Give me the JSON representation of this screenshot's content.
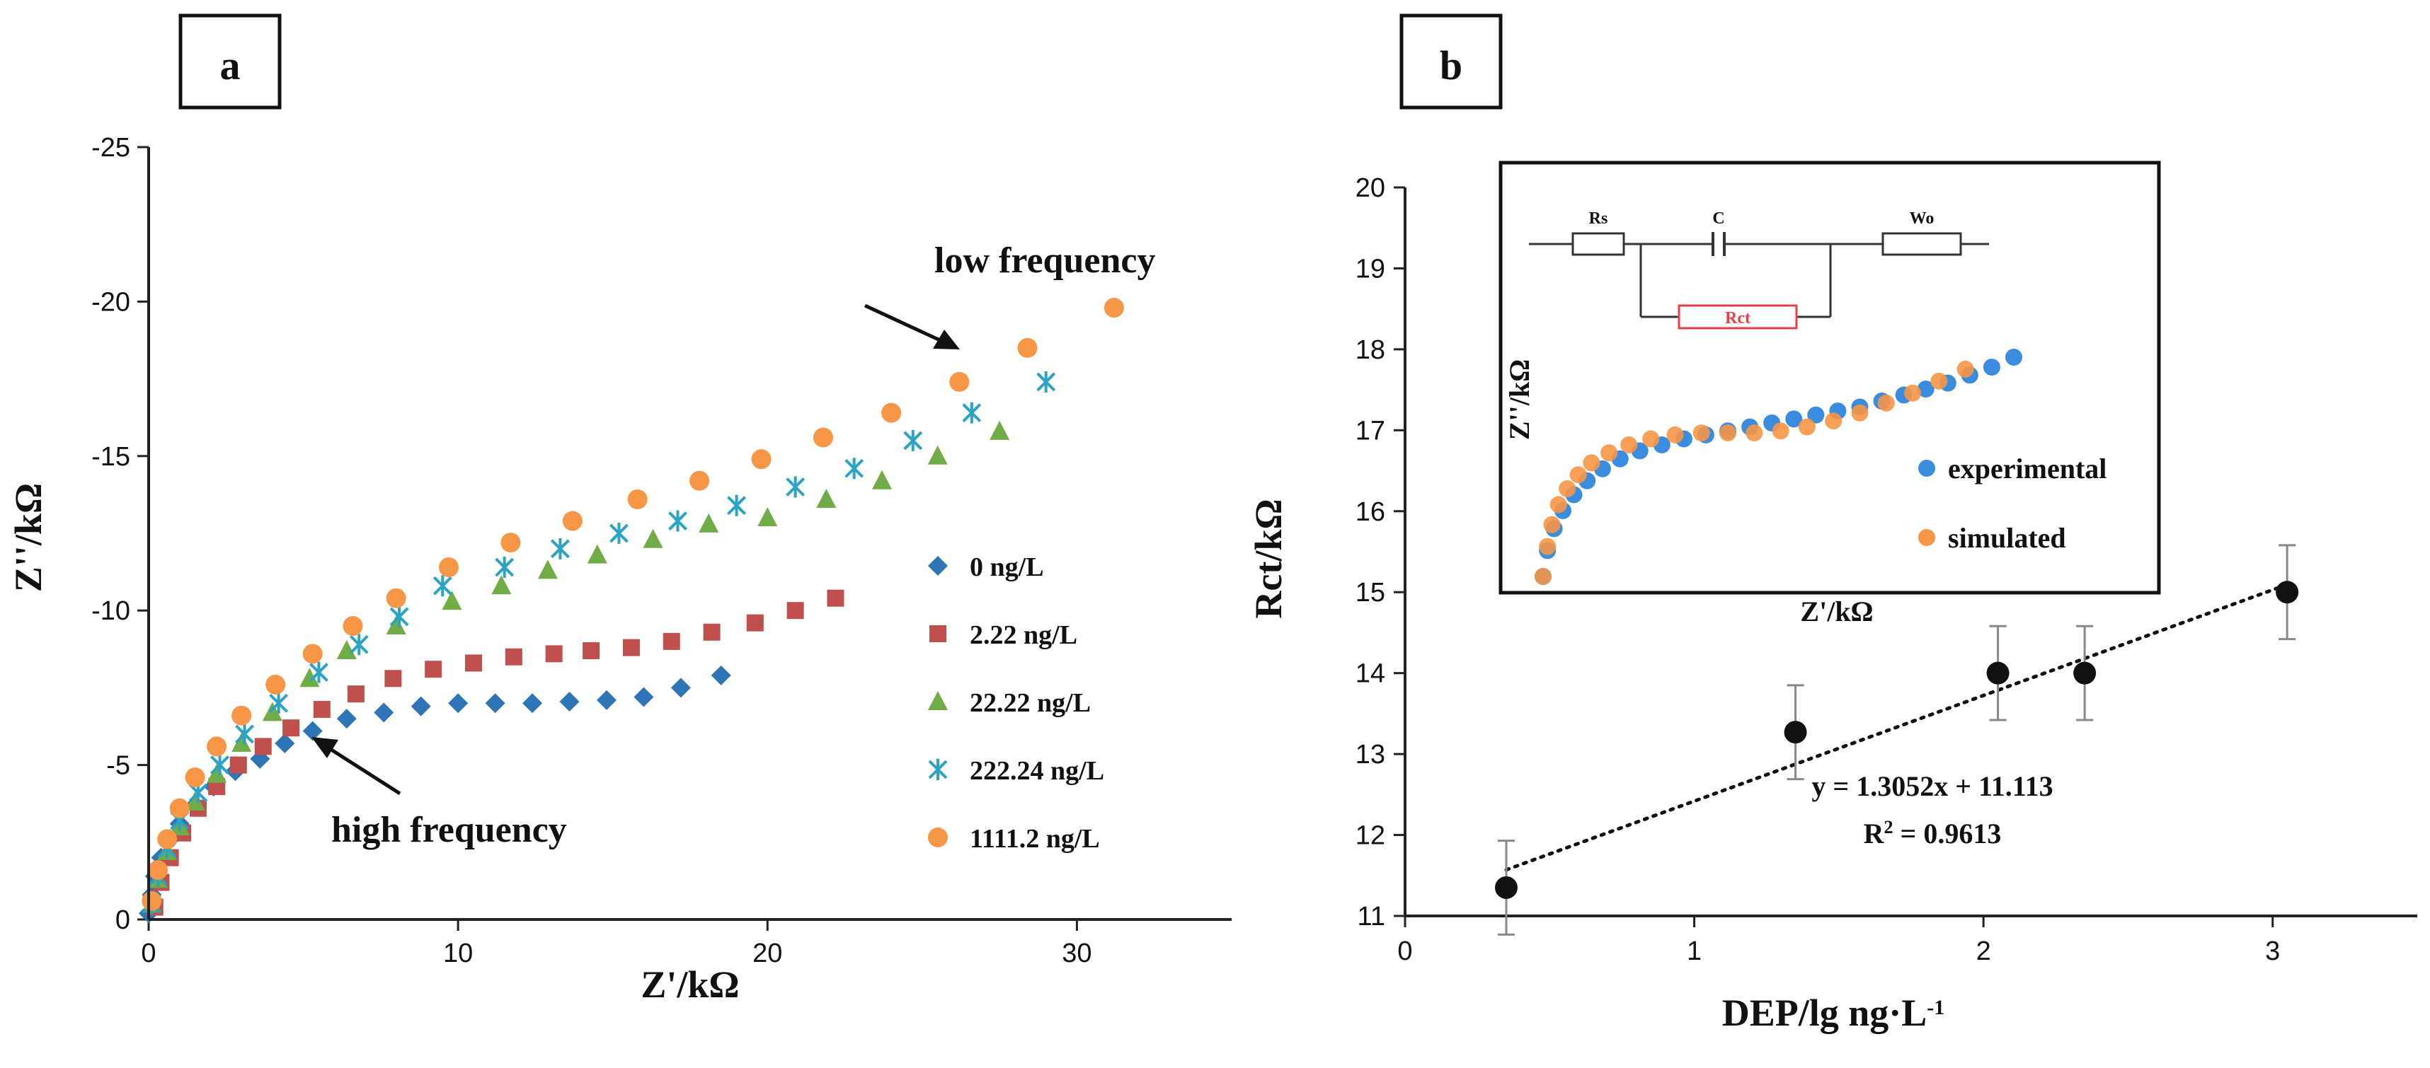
{
  "colors": {
    "blue": "#2E75B6",
    "red": "#C0504D",
    "green": "#70AD47",
    "cyan": "#2AA3C4",
    "orange": "#F79646",
    "exp": "#3A8DDE",
    "rct_box": "#E8404A",
    "axis": "#222222"
  },
  "chart_data": [
    {
      "panel_label": "a",
      "type": "scatter",
      "xlabel": "Z'/kΩ",
      "ylabel": "Z''/kΩ",
      "xlim": [
        0,
        35
      ],
      "ylim": [
        0,
        -25
      ],
      "xticks": [
        0,
        10,
        20,
        30
      ],
      "yticks": [
        0,
        -5,
        -10,
        -15,
        -20,
        -25
      ],
      "annotations": {
        "low": "low frequency",
        "high": "high frequency"
      },
      "series": [
        {
          "name": "0 ng/L",
          "marker": "diamond",
          "color": "#2E75B6",
          "x": [
            0,
            0.1,
            0.2,
            0.4,
            0.7,
            1.0,
            1.5,
            2.1,
            2.8,
            3.6,
            4.4,
            5.3,
            6.4,
            7.6,
            8.8,
            10.0,
            11.2,
            12.4,
            13.6,
            14.8,
            16.0,
            17.2,
            18.5
          ],
          "y": [
            -0.2,
            -0.8,
            -1.4,
            -2.0,
            -2.6,
            -3.1,
            -3.7,
            -4.3,
            -4.8,
            -5.2,
            -5.7,
            -6.1,
            -6.5,
            -6.7,
            -6.9,
            -7.0,
            -7.0,
            -7.0,
            -7.05,
            -7.1,
            -7.2,
            -7.5,
            -7.9
          ]
        },
        {
          "name": "2.22 ng/L",
          "marker": "square",
          "color": "#C0504D",
          "x": [
            0.2,
            0.4,
            0.7,
            1.1,
            1.6,
            2.2,
            2.9,
            3.7,
            4.6,
            5.6,
            6.7,
            7.9,
            9.2,
            10.5,
            11.8,
            13.1,
            14.3,
            15.6,
            16.9,
            18.2,
            19.6,
            20.9,
            22.2
          ],
          "y": [
            -0.4,
            -1.2,
            -2.0,
            -2.8,
            -3.6,
            -4.3,
            -5.0,
            -5.6,
            -6.2,
            -6.8,
            -7.3,
            -7.8,
            -8.1,
            -8.3,
            -8.5,
            -8.6,
            -8.7,
            -8.8,
            -9.0,
            -9.3,
            -9.6,
            -10.0,
            -10.4
          ]
        },
        {
          "name": "22.22 ng/L",
          "marker": "triangle",
          "color": "#70AD47",
          "x": [
            0.1,
            0.3,
            0.6,
            1.0,
            1.5,
            2.2,
            3.0,
            4.0,
            5.2,
            6.4,
            8.0,
            9.8,
            11.4,
            12.9,
            14.5,
            16.3,
            18.1,
            20.0,
            21.9,
            23.7,
            25.5,
            27.5
          ],
          "y": [
            -0.5,
            -1.3,
            -2.2,
            -3.0,
            -3.8,
            -4.7,
            -5.7,
            -6.7,
            -7.8,
            -8.7,
            -9.5,
            -10.3,
            -10.8,
            -11.3,
            -11.8,
            -12.3,
            -12.8,
            -13.0,
            -13.6,
            -14.2,
            -15.0,
            -15.8
          ]
        },
        {
          "name": "222.24 ng/L",
          "marker": "star",
          "color": "#2AA3C4",
          "x": [
            0.1,
            0.3,
            0.6,
            1.0,
            1.6,
            2.3,
            3.1,
            4.2,
            5.5,
            6.8,
            8.1,
            9.5,
            11.5,
            13.3,
            15.2,
            17.1,
            19.0,
            20.9,
            22.8,
            24.7,
            26.6,
            29.0
          ],
          "y": [
            -0.5,
            -1.4,
            -2.3,
            -3.2,
            -4.1,
            -5.0,
            -6.0,
            -7.0,
            -8.0,
            -8.9,
            -9.8,
            -10.8,
            -11.4,
            -12.0,
            -12.5,
            -12.9,
            -13.4,
            -14.0,
            -14.6,
            -15.5,
            -16.4,
            -17.4
          ]
        },
        {
          "name": "1111.2 ng/L",
          "marker": "circle",
          "color": "#F79646",
          "x": [
            0.1,
            0.3,
            0.6,
            1.0,
            1.5,
            2.2,
            3.0,
            4.1,
            5.3,
            6.6,
            8.0,
            9.7,
            11.7,
            13.7,
            15.8,
            17.8,
            19.8,
            21.8,
            24.0,
            26.2,
            28.4,
            31.2
          ],
          "y": [
            -0.6,
            -1.6,
            -2.6,
            -3.6,
            -4.6,
            -5.6,
            -6.6,
            -7.6,
            -8.6,
            -9.5,
            -10.4,
            -11.4,
            -12.2,
            -12.9,
            -13.6,
            -14.2,
            -14.9,
            -15.6,
            -16.4,
            -17.4,
            -18.5,
            -19.8
          ]
        }
      ]
    },
    {
      "panel_label": "b",
      "type": "scatter",
      "xlabel": "DEP/lg ng·L",
      "xlabel_sup": "-1",
      "ylabel": "Rct/kΩ",
      "xlim": [
        0,
        3.5
      ],
      "ylim": [
        11,
        20
      ],
      "xticks": [
        0,
        1,
        2,
        3
      ],
      "yticks": [
        11,
        12,
        13,
        14,
        15,
        16,
        17,
        18,
        19,
        20
      ],
      "points": [
        {
          "x": 0.35,
          "y": 11.35,
          "err": 0.58
        },
        {
          "x": 1.35,
          "y": 13.27,
          "err": 0.58
        },
        {
          "x": 2.05,
          "y": 14.0,
          "err": 0.58
        },
        {
          "x": 2.35,
          "y": 14.0,
          "err": 0.58
        },
        {
          "x": 3.05,
          "y": 15.0,
          "err": 0.58
        }
      ],
      "fit": {
        "slope": 1.3052,
        "intercept": 11.113,
        "x_from": 0.35,
        "x_to": 3.05
      },
      "equation": "y = 1.3052x + 11.113",
      "r2_prefix": "R",
      "r2_sup": "2",
      "r2_value": " = 0.9613",
      "inset": {
        "ylabel": "Z''/kΩ",
        "xlabel": "Z'/kΩ",
        "legend": [
          "experimental",
          "simulated"
        ],
        "circuit": {
          "rs": "Rs",
          "c": "C",
          "wo": "Wo",
          "rct": "Rct"
        },
        "experimental": {
          "x": [
            0.0,
            0.02,
            0.05,
            0.09,
            0.14,
            0.2,
            0.27,
            0.35,
            0.44,
            0.54,
            0.64,
            0.74,
            0.84,
            0.94,
            1.04,
            1.14,
            1.24,
            1.34,
            1.44,
            1.54,
            1.64,
            1.74,
            1.84,
            1.94,
            2.04,
            2.14
          ],
          "y": [
            0.0,
            0.13,
            0.24,
            0.33,
            0.41,
            0.48,
            0.54,
            0.59,
            0.63,
            0.66,
            0.69,
            0.71,
            0.73,
            0.75,
            0.77,
            0.79,
            0.81,
            0.83,
            0.85,
            0.88,
            0.91,
            0.94,
            0.97,
            1.01,
            1.05,
            1.1
          ]
        },
        "simulated": {
          "x": [
            0.0,
            0.02,
            0.04,
            0.07,
            0.11,
            0.16,
            0.22,
            0.3,
            0.39,
            0.49,
            0.6,
            0.72,
            0.84,
            0.96,
            1.08,
            1.2,
            1.32,
            1.44,
            1.56,
            1.68,
            1.8,
            1.92
          ],
          "y": [
            0.0,
            0.15,
            0.26,
            0.36,
            0.44,
            0.51,
            0.57,
            0.62,
            0.66,
            0.69,
            0.71,
            0.72,
            0.72,
            0.72,
            0.73,
            0.75,
            0.78,
            0.82,
            0.87,
            0.92,
            0.98,
            1.04
          ]
        }
      }
    }
  ]
}
